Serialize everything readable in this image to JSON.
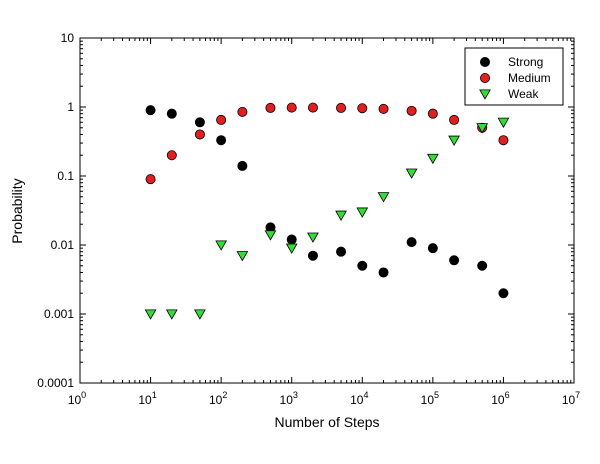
{
  "chart_data": {
    "type": "scatter",
    "xlabel": "Number of Steps",
    "ylabel": "Probability",
    "xscale": "log",
    "yscale": "log",
    "xlim": [
      1,
      10000000
    ],
    "ylim": [
      0.0001,
      10
    ],
    "grid": false,
    "legend_position": "top-right",
    "x_ticks": [
      {
        "value": 1,
        "base": "10",
        "exp": "0"
      },
      {
        "value": 10,
        "base": "10",
        "exp": "1"
      },
      {
        "value": 100,
        "base": "10",
        "exp": "2"
      },
      {
        "value": 1000,
        "base": "10",
        "exp": "3"
      },
      {
        "value": 10000,
        "base": "10",
        "exp": "4"
      },
      {
        "value": 100000,
        "base": "10",
        "exp": "5"
      },
      {
        "value": 1000000,
        "base": "10",
        "exp": "6"
      },
      {
        "value": 10000000,
        "base": "10",
        "exp": "7"
      }
    ],
    "y_ticks": [
      {
        "value": 0.0001,
        "label": "0.0001"
      },
      {
        "value": 0.001,
        "label": "0.001"
      },
      {
        "value": 0.01,
        "label": "0.01"
      },
      {
        "value": 0.1,
        "label": "0.1"
      },
      {
        "value": 1,
        "label": "1"
      },
      {
        "value": 10,
        "label": "10"
      }
    ],
    "series": [
      {
        "name": "Strong",
        "marker": "circle",
        "color": "#000000",
        "points": [
          [
            10,
            0.9
          ],
          [
            20,
            0.8
          ],
          [
            50,
            0.6
          ],
          [
            100,
            0.33
          ],
          [
            200,
            0.14
          ],
          [
            500,
            0.018
          ],
          [
            1000,
            0.012
          ],
          [
            2000,
            0.007
          ],
          [
            5000,
            0.008
          ],
          [
            10000,
            0.005
          ],
          [
            20000,
            0.004
          ],
          [
            50000,
            0.011
          ],
          [
            100000,
            0.009
          ],
          [
            200000,
            0.006
          ],
          [
            500000,
            0.005
          ],
          [
            1000000,
            0.002
          ]
        ]
      },
      {
        "name": "Medium",
        "marker": "circle",
        "color": "#e02020",
        "points": [
          [
            10,
            0.09
          ],
          [
            20,
            0.2
          ],
          [
            50,
            0.4
          ],
          [
            100,
            0.65
          ],
          [
            200,
            0.85
          ],
          [
            500,
            0.97
          ],
          [
            1000,
            0.98
          ],
          [
            2000,
            0.98
          ],
          [
            5000,
            0.97
          ],
          [
            10000,
            0.96
          ],
          [
            20000,
            0.94
          ],
          [
            50000,
            0.88
          ],
          [
            100000,
            0.8
          ],
          [
            200000,
            0.65
          ],
          [
            500000,
            0.5
          ],
          [
            1000000,
            0.33
          ]
        ]
      },
      {
        "name": "Weak",
        "marker": "triangle-down",
        "color": "#33dd33",
        "points": [
          [
            10,
            0.001
          ],
          [
            20,
            0.001
          ],
          [
            50,
            0.001
          ],
          [
            100,
            0.01
          ],
          [
            200,
            0.007
          ],
          [
            500,
            0.014
          ],
          [
            1000,
            0.009
          ],
          [
            2000,
            0.013
          ],
          [
            5000,
            0.027
          ],
          [
            10000,
            0.03
          ],
          [
            20000,
            0.05
          ],
          [
            50000,
            0.11
          ],
          [
            100000,
            0.18
          ],
          [
            200000,
            0.33
          ],
          [
            500000,
            0.5
          ],
          [
            1000000,
            0.6
          ]
        ]
      }
    ]
  }
}
